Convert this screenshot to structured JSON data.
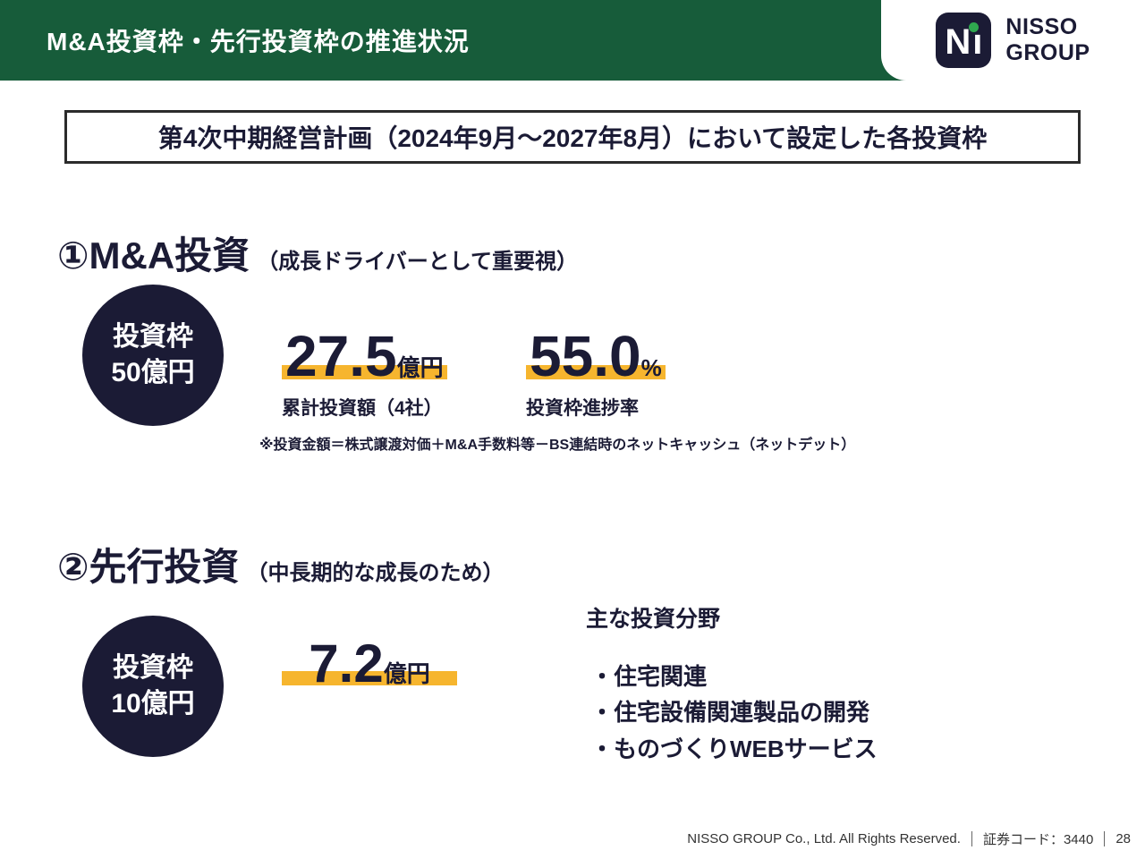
{
  "colors": {
    "header_green": "#175c3a",
    "dark_navy": "#1b1b35",
    "highlight_yellow": "#f6b52e",
    "logo_green": "#2fa84f"
  },
  "header": {
    "title": "M&A投資枠・先行投資枠の推進状況",
    "logo": {
      "mark_n": "N",
      "mark_i": "ı",
      "name": "NISSO",
      "group": "GROUP"
    }
  },
  "title_box": {
    "text": "第4次中期経営計画（2024年9月～2027年8月）において設定した各投資枠"
  },
  "section1": {
    "heading": "①M&A投資",
    "heading_note": "（成長ドライバーとして重要視）",
    "circle": {
      "line1": "投資枠",
      "line2": "50億円"
    },
    "metric_investment": {
      "value": "27.5",
      "unit": "億円",
      "label": "累計投資額（4社）"
    },
    "metric_progress": {
      "value": "55.0",
      "unit": "%",
      "label": "投資枠進捗率"
    },
    "note": "※投資金額＝株式譲渡対価＋M&A手数料等－BS連結時のネットキャッシュ（ネットデット）"
  },
  "section2": {
    "heading": "②先行投資",
    "heading_note": "（中長期的な成長のため）",
    "circle": {
      "line1": "投資枠",
      "line2": "10億円"
    },
    "metric_investment": {
      "value": "7.2",
      "unit": "億円"
    },
    "fields_title": "主な投資分野",
    "fields": [
      "・住宅関連",
      "・住宅設備関連製品の開発",
      "・ものづくりWEBサービス"
    ]
  },
  "footer": {
    "copyright": "NISSO GROUP Co., Ltd. All Rights Reserved.",
    "stock_code": "証券コード：3440",
    "page": "28"
  }
}
